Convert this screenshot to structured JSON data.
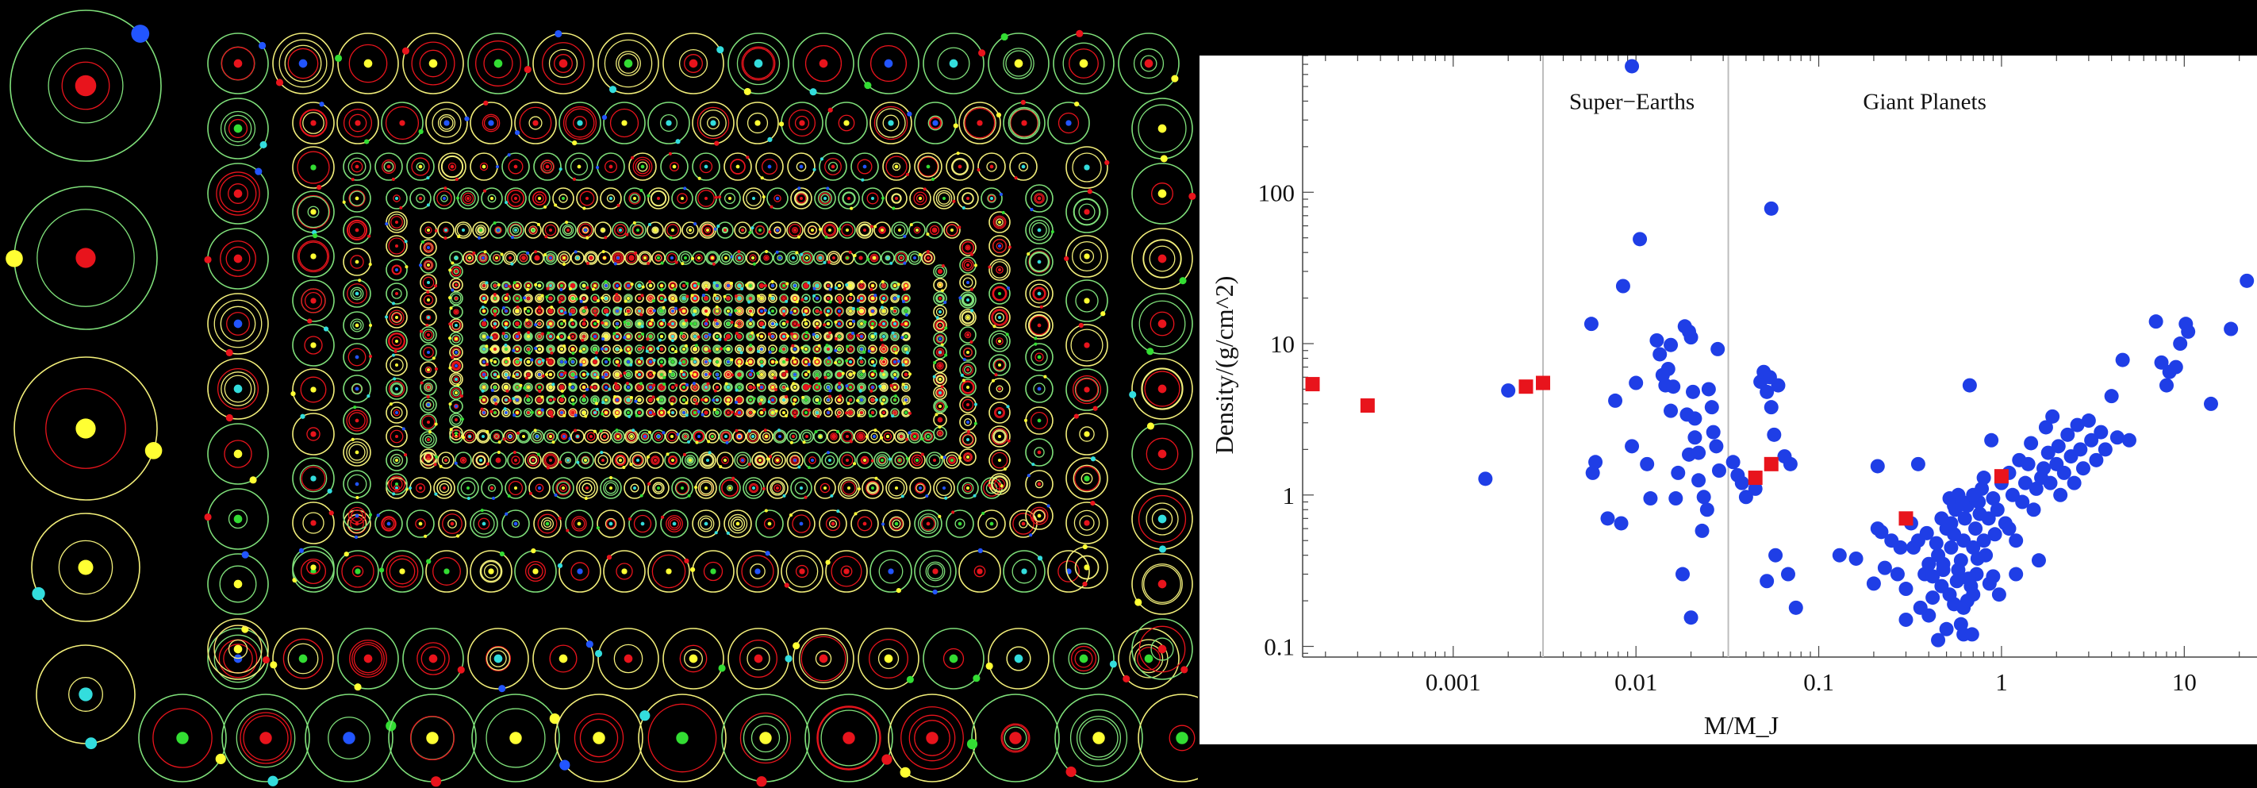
{
  "colors": {
    "background": "#000000",
    "planet_marker": "#1f3ee6",
    "solar_system_marker": "#e8141c",
    "boundary_line": "#bdbdbd",
    "orbit_green": "#7fe07a",
    "orbit_yellow": "#f3ef7a",
    "planet_red": "#e8141c",
    "planet_yellow": "#ffff33",
    "planet_green": "#33dd33",
    "planet_cyan": "#33dddd",
    "planet_blue": "#2255ff"
  },
  "orbit_gallery": {
    "description": "",
    "rows": 12,
    "icons": [
      "planet-orbit-system"
    ]
  },
  "chart_data": {
    "type": "scatter",
    "title": "",
    "xlabel": "M/M_J",
    "ylabel": "Density/(g/cm^2)",
    "xscale": "log",
    "yscale": "log",
    "xlim": [
      0.00015,
      25
    ],
    "ylim": [
      0.085,
      800
    ],
    "xticks": [
      0.001,
      0.01,
      0.1,
      1,
      10
    ],
    "xtick_labels": [
      "0.001",
      "0.01",
      "0.1",
      "1",
      "10"
    ],
    "yticks": [
      0.1,
      1,
      10,
      100
    ],
    "ytick_labels": [
      "0.1",
      "1",
      "10",
      "100"
    ],
    "grid": false,
    "legend": "none",
    "annotations": [
      {
        "text": "Super−Earths",
        "x": 0.0095,
        "y": 400
      },
      {
        "text": "Giant Planets",
        "x": 0.38,
        "y": 400
      }
    ],
    "vlines": [
      0.0031,
      0.032
    ],
    "series": [
      {
        "marker": "circle",
        "color": "#1f3ee6",
        "points": [
          [
            0.0095,
            680
          ],
          [
            0.0015,
            1.28
          ],
          [
            0.002,
            4.9
          ],
          [
            0.0057,
            13.5
          ],
          [
            0.006,
            1.65
          ],
          [
            0.0058,
            1.4
          ],
          [
            0.007,
            0.7
          ],
          [
            0.0077,
            4.2
          ],
          [
            0.0085,
            24
          ],
          [
            0.0083,
            0.65
          ],
          [
            0.01,
            5.5
          ],
          [
            0.0105,
            49
          ],
          [
            0.0095,
            2.1
          ],
          [
            0.0115,
            1.6
          ],
          [
            0.012,
            0.95
          ],
          [
            0.013,
            10.5
          ],
          [
            0.0135,
            8.5
          ],
          [
            0.014,
            6.2
          ],
          [
            0.0145,
            5.3
          ],
          [
            0.015,
            6.8
          ],
          [
            0.0155,
            9.8
          ],
          [
            0.016,
            5.2
          ],
          [
            0.0155,
            3.6
          ],
          [
            0.017,
            1.4
          ],
          [
            0.0165,
            0.95
          ],
          [
            0.018,
            0.3
          ],
          [
            0.0185,
            13
          ],
          [
            0.0195,
            12
          ],
          [
            0.02,
            11
          ],
          [
            0.0205,
            4.8
          ],
          [
            0.019,
            3.4
          ],
          [
            0.021,
            3.2
          ],
          [
            0.021,
            2.4
          ],
          [
            0.0195,
            1.85
          ],
          [
            0.022,
            1.9
          ],
          [
            0.022,
            1.25
          ],
          [
            0.0235,
            0.97
          ],
          [
            0.0245,
            0.8
          ],
          [
            0.023,
            0.58
          ],
          [
            0.02,
            0.155
          ],
          [
            0.025,
            5
          ],
          [
            0.026,
            3.8
          ],
          [
            0.0275,
            2.1
          ],
          [
            0.028,
            9.2
          ],
          [
            0.0265,
            2.6
          ],
          [
            0.0285,
            1.45
          ],
          [
            0.034,
            1.65
          ],
          [
            0.036,
            1.35
          ],
          [
            0.038,
            1.2
          ],
          [
            0.04,
            0.97
          ],
          [
            0.045,
            1.1
          ],
          [
            0.048,
            5.6
          ],
          [
            0.05,
            6.5
          ],
          [
            0.052,
            4.8
          ],
          [
            0.054,
            6
          ],
          [
            0.055,
            78
          ],
          [
            0.055,
            3.8
          ],
          [
            0.06,
            5.3
          ],
          [
            0.057,
            2.5
          ],
          [
            0.058,
            0.4
          ],
          [
            0.052,
            0.27
          ],
          [
            0.065,
            1.8
          ],
          [
            0.07,
            1.6
          ],
          [
            0.075,
            0.18
          ],
          [
            0.068,
            0.3
          ],
          [
            0.13,
            0.4
          ],
          [
            0.16,
            0.38
          ],
          [
            0.2,
            0.26
          ],
          [
            0.21,
            0.6
          ],
          [
            0.21,
            1.55
          ],
          [
            0.22,
            0.57
          ],
          [
            0.23,
            0.33
          ],
          [
            0.25,
            0.5
          ],
          [
            0.27,
            0.3
          ],
          [
            0.28,
            0.45
          ],
          [
            0.3,
            0.24
          ],
          [
            0.32,
            0.65
          ],
          [
            0.33,
            0.45
          ],
          [
            0.35,
            1.6
          ],
          [
            0.35,
            0.5
          ],
          [
            0.38,
            0.3
          ],
          [
            0.4,
            0.35
          ],
          [
            0.42,
            0.29
          ],
          [
            0.45,
            0.4
          ],
          [
            0.47,
            0.25
          ],
          [
            0.48,
            0.32
          ],
          [
            0.5,
            0.6
          ],
          [
            0.52,
            0.95
          ],
          [
            0.53,
            0.45
          ],
          [
            0.55,
            0.55
          ],
          [
            0.56,
            0.8
          ],
          [
            0.58,
            1.0
          ],
          [
            0.6,
            0.37
          ],
          [
            0.62,
            0.5
          ],
          [
            0.63,
            0.7
          ],
          [
            0.65,
            0.85
          ],
          [
            0.67,
            5.3
          ],
          [
            0.68,
            0.25
          ],
          [
            0.7,
            0.45
          ],
          [
            0.72,
            0.6
          ],
          [
            0.73,
            0.3
          ],
          [
            0.75,
            0.9
          ],
          [
            0.78,
            1.1
          ],
          [
            0.8,
            0.5
          ],
          [
            0.82,
            0.4
          ],
          [
            0.85,
            0.7
          ],
          [
            0.88,
            2.3
          ],
          [
            0.9,
            0.95
          ],
          [
            0.92,
            0.55
          ],
          [
            0.95,
            0.8
          ],
          [
            1.0,
            1.2
          ],
          [
            1.05,
            0.65
          ],
          [
            1.1,
            1.4
          ],
          [
            1.15,
            1.0
          ],
          [
            1.2,
            0.5
          ],
          [
            1.25,
            1.7
          ],
          [
            1.3,
            0.9
          ],
          [
            1.35,
            1.2
          ],
          [
            1.4,
            1.6
          ],
          [
            1.45,
            2.2
          ],
          [
            1.5,
            0.8
          ],
          [
            1.55,
            1.1
          ],
          [
            1.6,
            0.37
          ],
          [
            1.65,
            1.3
          ],
          [
            1.7,
            1.5
          ],
          [
            1.75,
            2.8
          ],
          [
            1.8,
            1.9
          ],
          [
            1.85,
            1.2
          ],
          [
            1.9,
            3.3
          ],
          [
            2.0,
            1.6
          ],
          [
            2.05,
            2.1
          ],
          [
            2.1,
            1.0
          ],
          [
            2.2,
            1.4
          ],
          [
            2.3,
            2.5
          ],
          [
            2.4,
            1.8
          ],
          [
            2.5,
            1.2
          ],
          [
            2.6,
            2.9
          ],
          [
            2.7,
            2.0
          ],
          [
            2.8,
            1.5
          ],
          [
            3.0,
            3.1
          ],
          [
            3.1,
            2.3
          ],
          [
            3.3,
            1.7
          ],
          [
            3.5,
            2.6
          ],
          [
            3.7,
            2.0
          ],
          [
            4.0,
            4.5
          ],
          [
            4.3,
            2.4
          ],
          [
            4.6,
            7.8
          ],
          [
            5.0,
            2.3
          ],
          [
            0.3,
            0.15
          ],
          [
            0.4,
            0.16
          ],
          [
            0.45,
            0.11
          ],
          [
            0.5,
            0.13
          ],
          [
            0.55,
            0.19
          ],
          [
            0.6,
            0.14
          ],
          [
            0.65,
            0.2
          ],
          [
            0.62,
            0.12
          ],
          [
            0.7,
            0.22
          ],
          [
            0.52,
            0.22
          ],
          [
            0.36,
            0.18
          ],
          [
            0.42,
            0.21
          ],
          [
            7,
            14
          ],
          [
            7.5,
            7.5
          ],
          [
            8,
            5.3
          ],
          [
            8.3,
            6.5
          ],
          [
            9,
            7
          ],
          [
            9.5,
            10
          ],
          [
            10.2,
            13.5
          ],
          [
            10.5,
            12
          ],
          [
            14,
            4
          ],
          [
            18,
            12.5
          ],
          [
            22,
            26
          ],
          [
            0.58,
            0.32
          ],
          [
            0.74,
            0.38
          ],
          [
            0.66,
            0.28
          ],
          [
            0.86,
            0.26
          ],
          [
            0.97,
            0.22
          ],
          [
            0.9,
            0.29
          ],
          [
            1.1,
            0.6
          ],
          [
            1.2,
            0.3
          ],
          [
            0.47,
            0.7
          ],
          [
            0.55,
            0.85
          ],
          [
            0.61,
            0.9
          ],
          [
            0.7,
            1.0
          ],
          [
            0.8,
            1.3
          ],
          [
            0.62,
            0.18
          ],
          [
            0.69,
            0.12
          ],
          [
            0.57,
            0.27
          ],
          [
            0.48,
            0.35
          ],
          [
            0.44,
            0.48
          ],
          [
            0.39,
            0.56
          ],
          [
            0.53,
            0.65
          ],
          [
            0.76,
            0.75
          ]
        ]
      },
      {
        "marker": "square",
        "color": "#e8141c",
        "points": [
          [
            0.00017,
            5.4
          ],
          [
            0.00034,
            3.9
          ],
          [
            0.0025,
            5.2
          ],
          [
            0.0031,
            5.5
          ],
          [
            0.045,
            1.3
          ],
          [
            0.055,
            1.6
          ],
          [
            0.3,
            0.7
          ],
          [
            1.0,
            1.33
          ]
        ]
      }
    ]
  }
}
